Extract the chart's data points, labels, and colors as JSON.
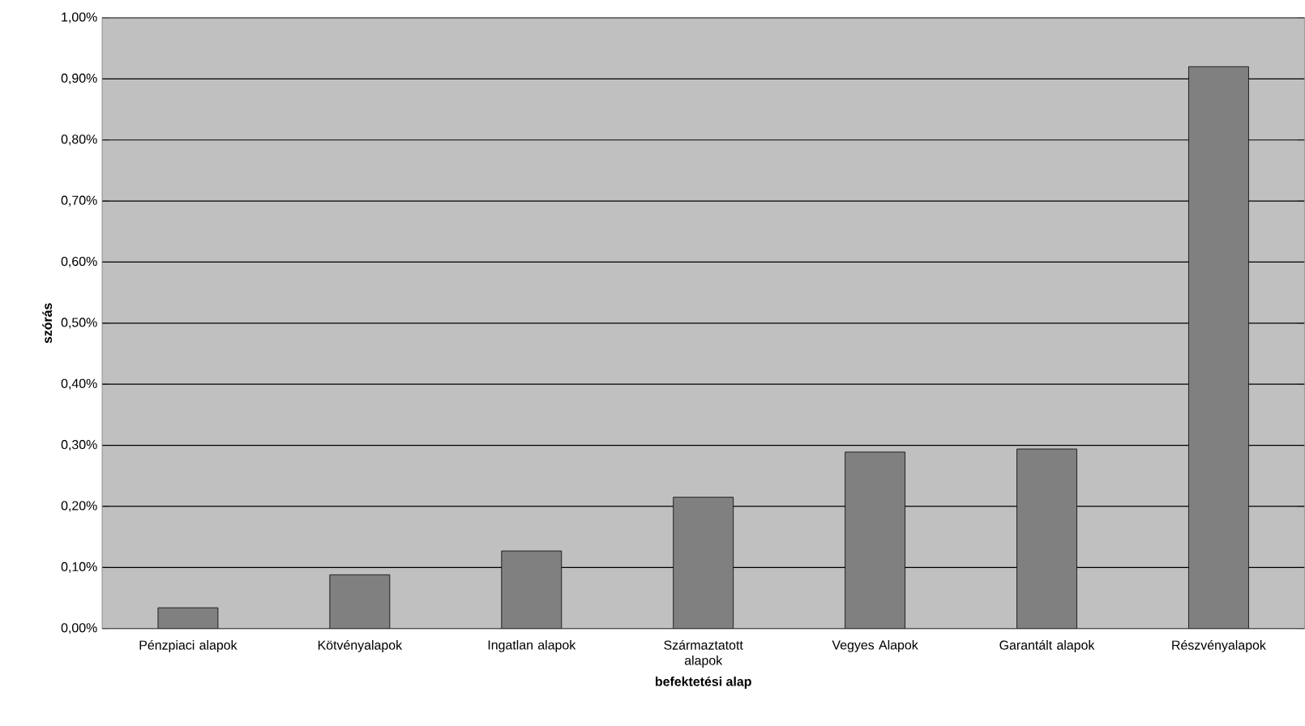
{
  "chart_data": {
    "type": "bar",
    "xlabel": "befektetési alap",
    "ylabel": "szórás",
    "categories": [
      "Pénzpiaci alapok",
      "Kötvényalapok",
      "Ingatlan alapok",
      "Származtatott alapok",
      "Vegyes Alapok",
      "Garantált alapok",
      "Részvényalapok"
    ],
    "values": [
      0.034,
      0.088,
      0.127,
      0.215,
      0.289,
      0.294,
      0.92
    ],
    "color": "#808080",
    "ylim": [
      0,
      1.0
    ],
    "yticks": [
      {
        "value": 0,
        "label": "0,00%"
      },
      {
        "value": 0.1,
        "label": "0,10%"
      },
      {
        "value": 0.2,
        "label": "0,20%"
      },
      {
        "value": 0.3,
        "label": "0,30%"
      },
      {
        "value": 0.4,
        "label": "0,40%"
      },
      {
        "value": 0.5,
        "label": "0,50%"
      },
      {
        "value": 0.6,
        "label": "0,60%"
      },
      {
        "value": 0.7,
        "label": "0,70%"
      },
      {
        "value": 0.8,
        "label": "0,80%"
      },
      {
        "value": 0.9,
        "label": "0,90%"
      },
      {
        "value": 1.0,
        "label": "1,00%"
      }
    ],
    "grid": "y"
  }
}
